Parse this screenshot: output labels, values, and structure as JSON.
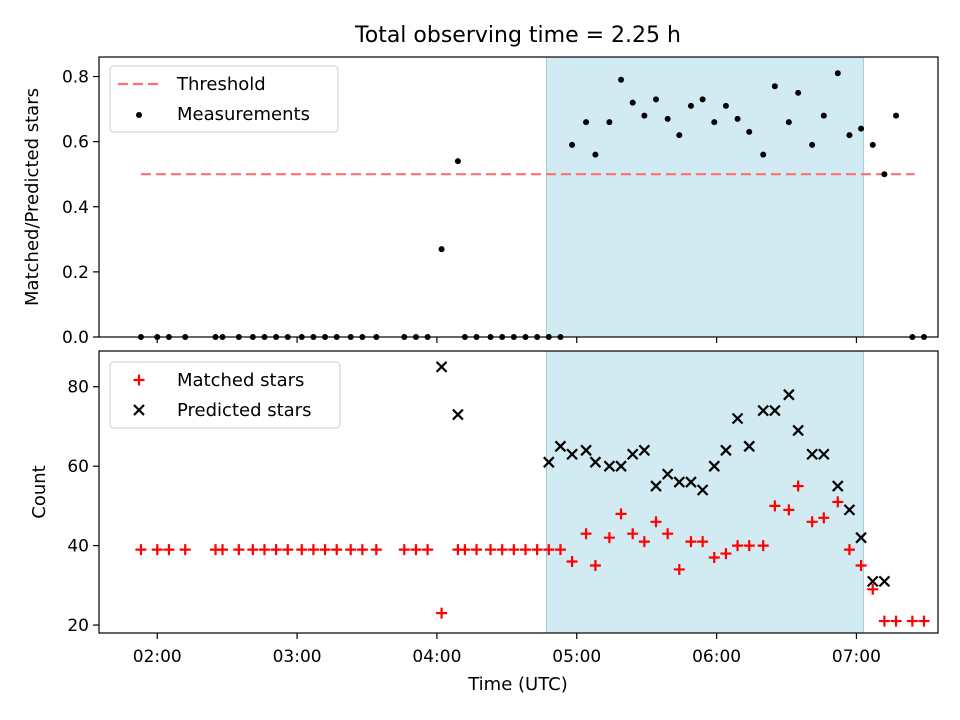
{
  "figure": {
    "title": "Total observing time = 2.25 h",
    "xlabel": "Time (UTC)",
    "x_ticks": [
      "02:00",
      "03:00",
      "04:00",
      "05:00",
      "06:00",
      "07:00"
    ]
  },
  "colors": {
    "threshold": "#ff7070",
    "measurement": "#000000",
    "matched": "#ff0000",
    "predicted": "#000000",
    "highlight": "#add8e6"
  },
  "chart_data": [
    {
      "type": "scatter",
      "ylabel": "Matched/Predicted stars",
      "ylim": [
        0.0,
        0.86
      ],
      "y_ticks": [
        "0.0",
        "0.2",
        "0.4",
        "0.6",
        "0.8"
      ],
      "xlim": [
        "01:35",
        "07:35"
      ],
      "highlight_span": [
        "04:47",
        "07:03"
      ],
      "legend": {
        "location": "upper left",
        "threshold_label": "Threshold",
        "measurements_label": "Measurements"
      },
      "threshold": {
        "value": 0.5,
        "x_start": "01:53",
        "x_end": "07:25"
      },
      "series": [
        {
          "name": "Measurements",
          "x": [
            "01:53",
            "02:00",
            "02:05",
            "02:12",
            "02:25",
            "02:28",
            "02:35",
            "02:41",
            "02:46",
            "02:51",
            "02:56",
            "03:02",
            "03:07",
            "03:12",
            "03:17",
            "03:23",
            "03:28",
            "03:34",
            "03:46",
            "03:51",
            "03:56",
            "04:02",
            "04:09",
            "04:12",
            "04:17",
            "04:23",
            "04:28",
            "04:33",
            "04:38",
            "04:43",
            "04:48",
            "04:53",
            "04:58",
            "05:04",
            "05:08",
            "05:14",
            "05:19",
            "05:24",
            "05:29",
            "05:34",
            "05:39",
            "05:44",
            "05:49",
            "05:54",
            "05:59",
            "06:04",
            "06:09",
            "06:14",
            "06:20",
            "06:25",
            "06:31",
            "06:35",
            "06:41",
            "06:46",
            "06:52",
            "06:57",
            "07:02",
            "07:07",
            "07:12",
            "07:17",
            "07:24",
            "07:29"
          ],
          "y": [
            0.0,
            0.0,
            0.0,
            0.0,
            0.0,
            0.0,
            0.0,
            0.0,
            0.0,
            0.0,
            0.0,
            0.0,
            0.0,
            0.0,
            0.0,
            0.0,
            0.0,
            0.0,
            0.0,
            0.0,
            0.0,
            0.27,
            0.54,
            0.0,
            0.0,
            0.0,
            0.0,
            0.0,
            0.0,
            0.0,
            0.0,
            0.0,
            0.59,
            0.66,
            0.56,
            0.66,
            0.79,
            0.72,
            0.68,
            0.73,
            0.67,
            0.62,
            0.71,
            0.73,
            0.66,
            0.71,
            0.67,
            0.63,
            0.56,
            0.77,
            0.66,
            0.75,
            0.59,
            0.68,
            0.81,
            0.62,
            0.64,
            0.59,
            0.5,
            0.68,
            0.0,
            0.0
          ]
        }
      ]
    },
    {
      "type": "scatter",
      "ylabel": "Count",
      "ylim": [
        18,
        89
      ],
      "y_ticks": [
        "20",
        "40",
        "60",
        "80"
      ],
      "xlim": [
        "01:35",
        "07:35"
      ],
      "highlight_span": [
        "04:47",
        "07:03"
      ],
      "legend": {
        "location": "upper left"
      },
      "series": [
        {
          "name": "Matched stars",
          "marker": "plus",
          "x": [
            "01:53",
            "02:00",
            "02:05",
            "02:12",
            "02:25",
            "02:28",
            "02:35",
            "02:41",
            "02:46",
            "02:51",
            "02:56",
            "03:02",
            "03:07",
            "03:12",
            "03:17",
            "03:23",
            "03:28",
            "03:34",
            "03:46",
            "03:51",
            "03:56",
            "04:02",
            "04:09",
            "04:12",
            "04:17",
            "04:23",
            "04:28",
            "04:33",
            "04:38",
            "04:43",
            "04:48",
            "04:53",
            "04:58",
            "05:04",
            "05:08",
            "05:14",
            "05:19",
            "05:24",
            "05:29",
            "05:34",
            "05:39",
            "05:44",
            "05:49",
            "05:54",
            "05:59",
            "06:04",
            "06:09",
            "06:14",
            "06:20",
            "06:25",
            "06:31",
            "06:35",
            "06:41",
            "06:46",
            "06:52",
            "06:57",
            "07:02",
            "07:07",
            "07:12",
            "07:17",
            "07:24",
            "07:29"
          ],
          "y": [
            39,
            39,
            39,
            39,
            39,
            39,
            39,
            39,
            39,
            39,
            39,
            39,
            39,
            39,
            39,
            39,
            39,
            39,
            39,
            39,
            39,
            23,
            39,
            39,
            39,
            39,
            39,
            39,
            39,
            39,
            39,
            39,
            36,
            43,
            35,
            42,
            48,
            43,
            41,
            46,
            43,
            34,
            41,
            41,
            37,
            38,
            40,
            40,
            40,
            50,
            49,
            55,
            46,
            47,
            51,
            39,
            35,
            29,
            21,
            21,
            21,
            21
          ]
        },
        {
          "name": "Predicted stars",
          "marker": "x",
          "x": [
            "04:02",
            "04:09",
            "04:48",
            "04:53",
            "04:58",
            "05:04",
            "05:08",
            "05:14",
            "05:19",
            "05:24",
            "05:29",
            "05:34",
            "05:39",
            "05:44",
            "05:49",
            "05:54",
            "05:59",
            "06:04",
            "06:09",
            "06:14",
            "06:20",
            "06:25",
            "06:31",
            "06:35",
            "06:41",
            "06:46",
            "06:52",
            "06:57",
            "07:02",
            "07:07",
            "07:12"
          ],
          "y": [
            85,
            73,
            61,
            65,
            63,
            64,
            61,
            60,
            60,
            63,
            64,
            55,
            58,
            56,
            56,
            54,
            60,
            64,
            72,
            65,
            74,
            74,
            78,
            69,
            63,
            63,
            55,
            49,
            42,
            31,
            31
          ]
        }
      ]
    }
  ]
}
